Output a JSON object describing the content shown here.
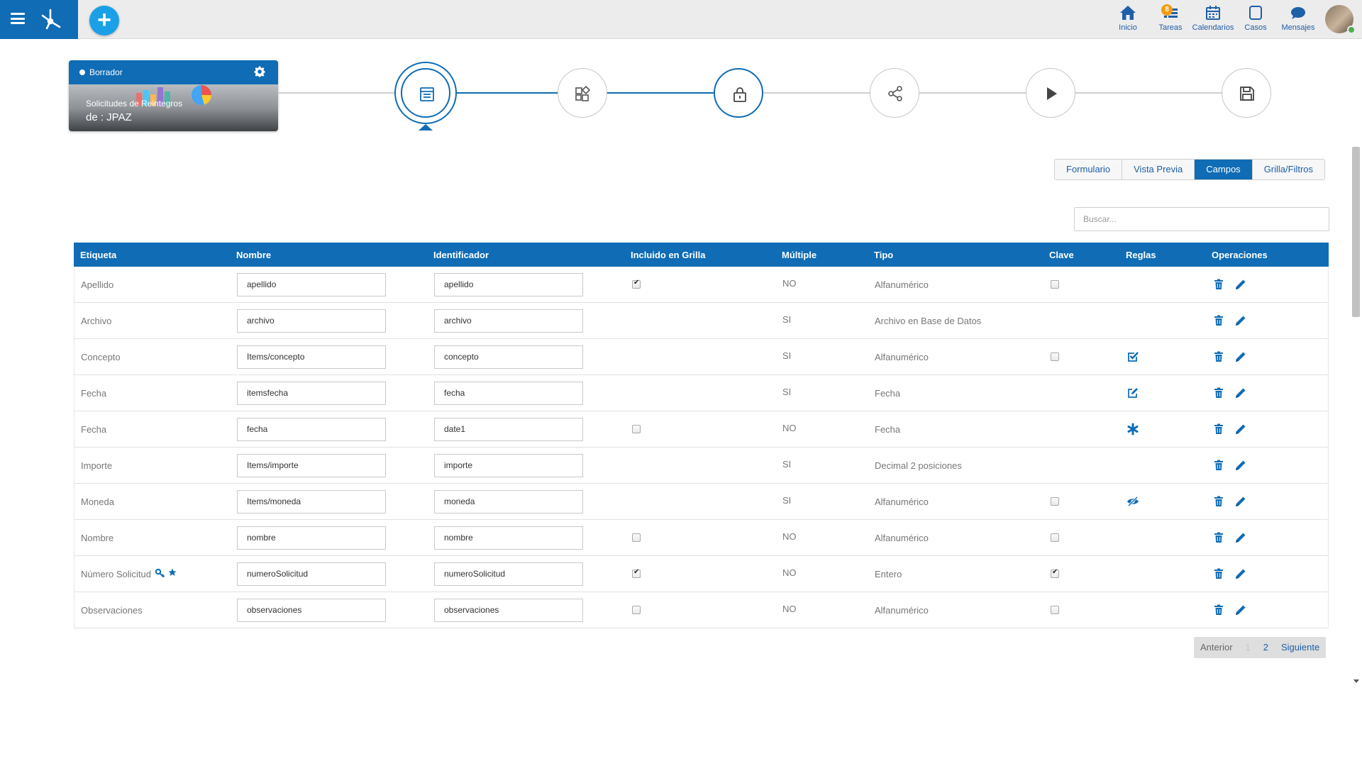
{
  "nav": {
    "items": [
      {
        "label": "Inicio",
        "icon": "home-icon"
      },
      {
        "label": "Tareas",
        "icon": "tasks-icon",
        "badge": "8"
      },
      {
        "label": "Calendarios",
        "icon": "calendar-icon"
      },
      {
        "label": "Casos",
        "icon": "cases-icon"
      },
      {
        "label": "Mensajes",
        "icon": "messages-icon"
      }
    ]
  },
  "process_card": {
    "status": "Borrador",
    "title_line1": "Solicitudes de Reintegros",
    "title_line2": "de : JPAZ"
  },
  "tabs": [
    {
      "label": "Formulario",
      "active": false
    },
    {
      "label": "Vista Previa",
      "active": false
    },
    {
      "label": "Campos",
      "active": true
    },
    {
      "label": "Grilla/Filtros",
      "active": false
    }
  ],
  "search": {
    "placeholder": "Buscar...",
    "value": ""
  },
  "table": {
    "headers": [
      "Etiqueta",
      "Nombre",
      "Identificador",
      "Incluido en Grilla",
      "Múltiple",
      "Tipo",
      "Clave",
      "Reglas",
      "Operaciones"
    ],
    "rows": [
      {
        "etiqueta": "Apellido",
        "nombre": "apellido",
        "identificador": "apellido",
        "grilla": "checked",
        "multiple": "NO",
        "tipo": "Alfanumérico",
        "clave": "unchecked",
        "regla": ""
      },
      {
        "etiqueta": "Archivo",
        "nombre": "archivo",
        "identificador": "archivo",
        "grilla": "none",
        "multiple": "SI",
        "tipo": "Archivo en Base de Datos",
        "clave": "none",
        "regla": ""
      },
      {
        "etiqueta": "Concepto",
        "nombre": "Items/concepto",
        "identificador": "concepto",
        "grilla": "none",
        "multiple": "SI",
        "tipo": "Alfanumérico",
        "clave": "unchecked",
        "regla": "check-square-icon"
      },
      {
        "etiqueta": "Fecha",
        "nombre": "itemsfecha",
        "identificador": "fecha",
        "grilla": "none",
        "multiple": "SI",
        "tipo": "Fecha",
        "clave": "none",
        "regla": "edit-square-icon"
      },
      {
        "etiqueta": "Fecha",
        "nombre": "fecha",
        "identificador": "date1",
        "grilla": "unchecked",
        "multiple": "NO",
        "tipo": "Fecha",
        "clave": "none",
        "regla": "asterisk-icon"
      },
      {
        "etiqueta": "Importe",
        "nombre": "Items/importe",
        "identificador": "importe",
        "grilla": "none",
        "multiple": "SI",
        "tipo": "Decimal 2 posiciones",
        "clave": "none",
        "regla": ""
      },
      {
        "etiqueta": "Moneda",
        "nombre": "Items/moneda",
        "identificador": "moneda",
        "grilla": "none",
        "multiple": "SI",
        "tipo": "Alfanumérico",
        "clave": "unchecked",
        "regla": "eye-slash-icon"
      },
      {
        "etiqueta": "Nombre",
        "nombre": "nombre",
        "identificador": "nombre",
        "grilla": "unchecked",
        "multiple": "NO",
        "tipo": "Alfanumérico",
        "clave": "unchecked",
        "regla": ""
      },
      {
        "etiqueta": "Número Solicitud",
        "nombre": "numeroSolicitud",
        "identificador": "numeroSolicitud",
        "grilla": "checked",
        "multiple": "NO",
        "tipo": "Entero",
        "clave": "checked",
        "regla": "",
        "key_icons": true
      },
      {
        "etiqueta": "Observaciones",
        "nombre": "observaciones",
        "identificador": "observaciones",
        "grilla": "unchecked",
        "multiple": "NO",
        "tipo": "Alfanumérico",
        "clave": "unchecked",
        "regla": ""
      }
    ]
  },
  "pager": {
    "prev": "Anterior",
    "page1": "1",
    "page2": "2",
    "next": "Siguiente"
  },
  "colors": {
    "primary": "#0f6cb5",
    "accent": "#1aa0e6",
    "badge": "#f39c12",
    "link": "#1f5fa7"
  }
}
